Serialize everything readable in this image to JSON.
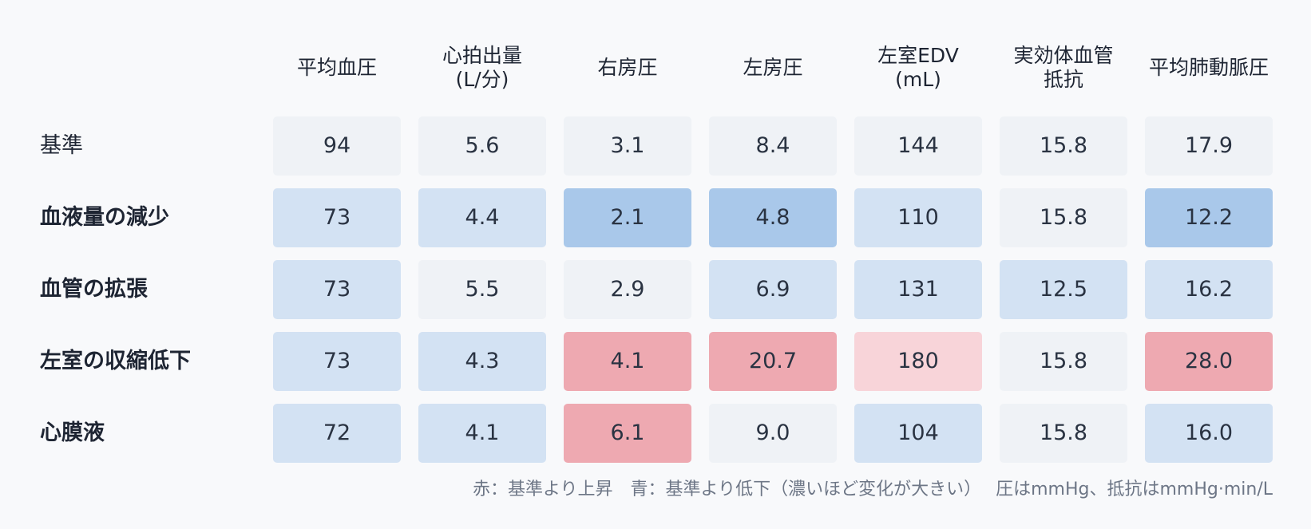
{
  "chart_data": {
    "type": "heatmap",
    "columns": [
      "平均血圧",
      "心拍出量\n(L/分)",
      "右房圧",
      "左房圧",
      "左室EDV\n(mL)",
      "実効体血管\n抵抗",
      "平均肺動脈圧"
    ],
    "rows": [
      {
        "label": "基準",
        "bold": false,
        "values": [
          "94",
          "5.6",
          "3.1",
          "8.4",
          "144",
          "15.8",
          "17.9"
        ],
        "levels": [
          0,
          0,
          0,
          0,
          0,
          0,
          0
        ]
      },
      {
        "label": "血液量の減少",
        "bold": true,
        "values": [
          "73",
          "4.4",
          "2.1",
          "4.8",
          "110",
          "15.8",
          "12.2"
        ],
        "levels": [
          -1,
          -1,
          -2,
          -2,
          -1,
          0,
          -2
        ]
      },
      {
        "label": "血管の拡張",
        "bold": true,
        "values": [
          "73",
          "5.5",
          "2.9",
          "6.9",
          "131",
          "12.5",
          "16.2"
        ],
        "levels": [
          -1,
          0,
          0,
          -1,
          -1,
          -1,
          -1
        ]
      },
      {
        "label": "左室の収縮低下",
        "bold": true,
        "values": [
          "73",
          "4.3",
          "4.1",
          "20.7",
          "180",
          "15.8",
          "28.0"
        ],
        "levels": [
          -1,
          -1,
          2,
          2,
          1,
          0,
          2
        ]
      },
      {
        "label": "心膜液",
        "bold": true,
        "values": [
          "72",
          "4.1",
          "6.1",
          "9.0",
          "104",
          "15.8",
          "16.0"
        ],
        "levels": [
          -1,
          -1,
          2,
          0,
          -1,
          0,
          -1
        ]
      }
    ],
    "colors": {
      "baseline": "#eff2f6",
      "down_light": "#d3e2f3",
      "down_strong": "#a9c8ea",
      "up_light": "#f8d4d9",
      "up_strong": "#eea9b1"
    }
  },
  "legend_note": "赤：基準より上昇　青：基準より低下（濃いほど変化が大きい）　 圧はmmHg、抵抗はmmHg·min/L"
}
